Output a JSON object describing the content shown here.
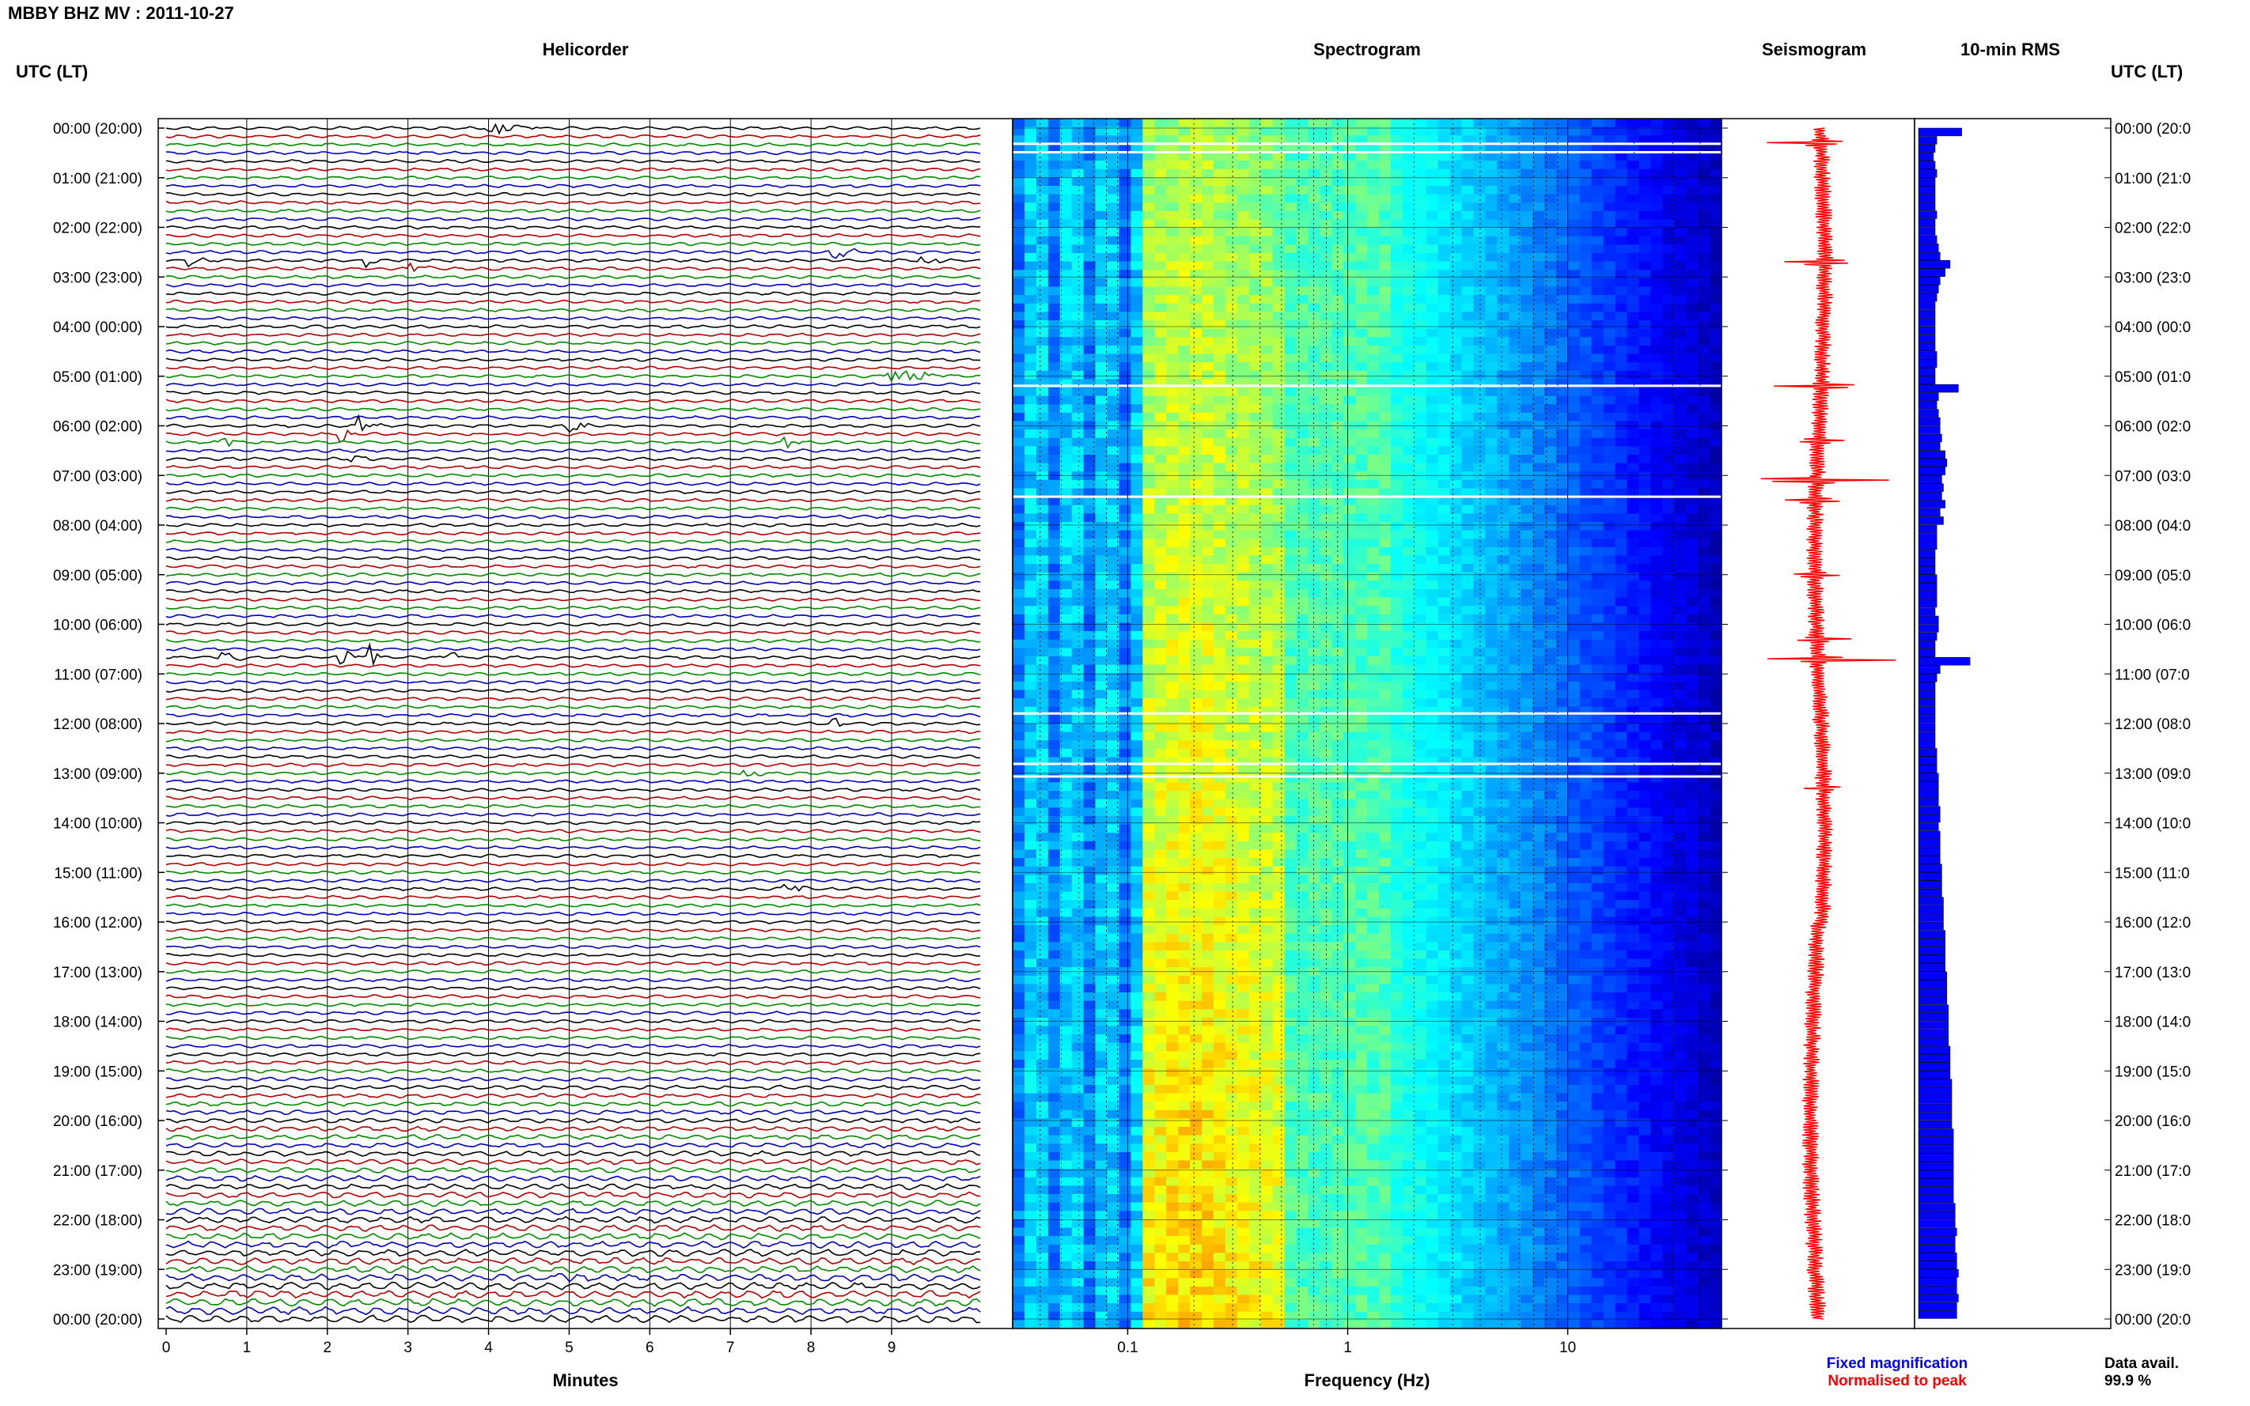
{
  "header": {
    "station_title": "MBBY BHZ MV : 2011-10-27",
    "utc_label_left": "UTC (LT)",
    "utc_label_right": "UTC (LT)"
  },
  "panels": {
    "helicorder": "Helicorder",
    "spectrogram": "Spectrogram",
    "seismogram": "Seismogram",
    "rms": "10-min RMS"
  },
  "time_labels": [
    "00:00 (20:00)",
    "01:00 (21:00)",
    "02:00 (22:00)",
    "03:00 (23:00)",
    "04:00 (00:00)",
    "05:00 (01:00)",
    "06:00 (02:00)",
    "07:00 (03:00)",
    "08:00 (04:00)",
    "09:00 (05:00)",
    "10:00 (06:00)",
    "11:00 (07:00)",
    "12:00 (08:00)",
    "13:00 (09:00)",
    "14:00 (10:00)",
    "15:00 (11:00)",
    "16:00 (12:00)",
    "17:00 (13:00)",
    "18:00 (14:00)",
    "19:00 (15:00)",
    "20:00 (16:00)",
    "21:00 (17:00)",
    "22:00 (18:00)",
    "23:00 (19:00)",
    "00:00 (20:00)"
  ],
  "time_labels_right": [
    "00:00 (20:0",
    "01:00 (21:0",
    "02:00 (22:0",
    "03:00 (23:0",
    "04:00 (00:0",
    "05:00 (01:0",
    "06:00 (02:0",
    "07:00 (03:0",
    "08:00 (04:0",
    "09:00 (05:0",
    "10:00 (06:0",
    "11:00 (07:0",
    "12:00 (08:0",
    "13:00 (09:0",
    "14:00 (10:0",
    "15:00 (11:0",
    "16:00 (12:0",
    "17:00 (13:0",
    "18:00 (14:0",
    "19:00 (15:0",
    "20:00 (16:0",
    "21:00 (17:0",
    "22:00 (18:0",
    "23:00 (19:0",
    "00:00 (20:0"
  ],
  "footer": {
    "xlabel_helicorder": "Minutes",
    "xlabel_spectrogram": "Frequency (Hz)",
    "legend_fixed": "Fixed magnification",
    "legend_normalised": "Normalised to peak",
    "data_avail_label": "Data avail.",
    "data_avail_value": "99.9 %"
  },
  "colors": {
    "trace_cycle": [
      "#000000",
      "#b00000",
      "#008a00",
      "#0000b4"
    ],
    "fixed": "#0000ff",
    "normalised": "#ff0000",
    "rms_bar": "#0000ff"
  },
  "chart_data": [
    {
      "type": "line",
      "title": "Helicorder",
      "xlabel": "Minutes",
      "x_ticks": [
        "0",
        "1",
        "2",
        "3",
        "4",
        "5",
        "6",
        "7",
        "8",
        "9"
      ],
      "xlim": [
        0,
        10
      ],
      "rows_per_hour": 6,
      "hours": 24
    },
    {
      "type": "heatmap",
      "title": "Spectrogram",
      "xlabel": "Frequency (Hz)",
      "x_scale": "log",
      "x_ticks": [
        "0.1",
        "1",
        "10"
      ],
      "xlim": [
        0.03,
        50
      ]
    },
    {
      "type": "line",
      "title": "Seismogram"
    },
    {
      "type": "bar",
      "title": "10-min RMS",
      "orientation": "horizontal",
      "bins": 144,
      "spikes_hours": [
        0.1,
        5.15,
        6.95,
        10.75
      ],
      "values_relative": [
        2.6,
        1.1,
        1.0,
        0.9,
        1.0,
        1.1,
        1.0,
        1.0,
        1.0,
        1.0,
        1.1,
        1.0,
        1.0,
        1.1,
        1.2,
        1.3,
        1.9,
        1.6,
        1.3,
        1.2,
        1.1,
        1.0,
        1.0,
        1.0,
        1.0,
        1.0,
        1.0,
        1.1,
        1.1,
        1.0,
        1.0,
        2.4,
        1.2,
        1.1,
        1.2,
        1.3,
        1.3,
        1.4,
        1.3,
        1.6,
        1.7,
        1.6,
        1.4,
        1.5,
        1.4,
        1.6,
        1.3,
        1.5,
        1.1,
        1.1,
        1.1,
        1.0,
        1.0,
        1.0,
        1.1,
        1.1,
        1.1,
        1.1,
        1.0,
        1.2,
        1.2,
        1.1,
        1.0,
        1.0,
        3.1,
        1.3,
        1.1,
        1.0,
        1.0,
        1.0,
        1.0,
        1.0,
        1.0,
        1.0,
        1.0,
        1.1,
        1.1,
        1.1,
        1.2,
        1.2,
        1.2,
        1.2,
        1.3,
        1.3,
        1.2,
        1.3,
        1.3,
        1.3,
        1.3,
        1.4,
        1.4,
        1.4,
        1.4,
        1.5,
        1.5,
        1.5,
        1.5,
        1.6,
        1.6,
        1.6,
        1.6,
        1.6,
        1.7,
        1.7,
        1.7,
        1.7,
        1.8,
        1.8,
        1.8,
        1.8,
        1.8,
        1.9,
        1.9,
        1.9,
        1.9,
        2.0,
        2.0,
        2.0,
        2.0,
        2.0,
        2.0,
        2.1,
        2.1,
        2.1,
        2.1,
        2.1,
        2.1,
        2.1,
        2.1,
        2.1,
        2.2,
        2.2,
        2.2,
        2.3,
        2.2,
        2.2,
        2.3,
        2.3,
        2.4,
        2.3,
        2.3,
        2.4,
        2.3,
        2.3
      ]
    }
  ]
}
